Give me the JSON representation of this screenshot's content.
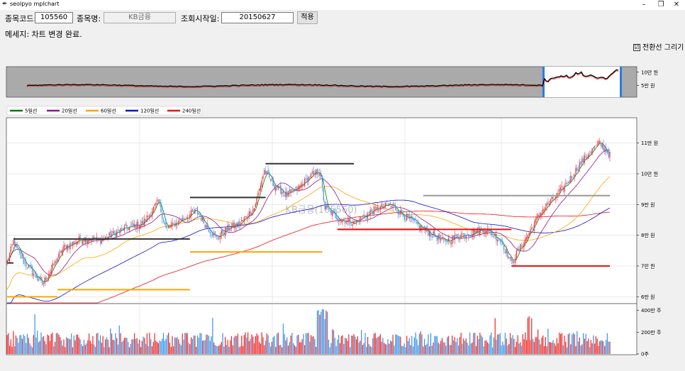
{
  "window": {
    "title": "seolpyo mplchart",
    "minimize": "–",
    "maximize": "❐",
    "close": "✕"
  },
  "toolbar": {
    "code_label": "종목코드:",
    "code_value": "105560",
    "name_label": "종목명:",
    "name_value": "KB금융",
    "start_label": "조회시작일:",
    "start_value": "20150627",
    "apply_label": "적용"
  },
  "message": "메세지: 차트 변경 완료.",
  "checkbox": {
    "label": "전환선 그리기",
    "checked": true,
    "mark": "☑"
  },
  "colors": {
    "up": "#ef2b2b",
    "down": "#3d95e8",
    "ma5": "#0a7a0a",
    "ma20": "#8b1a8b",
    "ma60": "#ffa500",
    "ma120": "#1010cc",
    "ma240": "#ee1111",
    "grid": "#dcdcdc"
  },
  "chart_data": {
    "type": "candlestick",
    "watermark": "KB금융(105560)",
    "legend": [
      {
        "name": "5일선",
        "color": "#0a7a0a"
      },
      {
        "name": "20일선",
        "color": "#8b1a8b"
      },
      {
        "name": "60일선",
        "color": "#ffa500"
      },
      {
        "name": "120일선",
        "color": "#1010cc"
      },
      {
        "name": "240일선",
        "color": "#ee1111"
      }
    ],
    "price_axis": {
      "ticks": [
        60000,
        70000,
        80000,
        90000,
        100000,
        110000
      ],
      "labels": [
        "6만 원",
        "7만 원",
        "8만 원",
        "9만 원",
        "10만 원",
        "11만 원"
      ],
      "ylim": [
        58000,
        118000
      ]
    },
    "volume_axis": {
      "ticks": [
        0,
        2000000,
        4000000
      ],
      "labels": [
        "0주",
        "200만 주",
        "400만 주"
      ],
      "ylim": [
        0,
        4500000
      ]
    },
    "overview_axis": {
      "ticks": [
        50000,
        100000
      ],
      "labels": [
        "5만 원",
        "10만 원"
      ]
    },
    "anchors": [
      [
        0,
        71000
      ],
      [
        5,
        78000
      ],
      [
        12,
        72000
      ],
      [
        20,
        68000
      ],
      [
        28,
        64000
      ],
      [
        35,
        69000
      ],
      [
        45,
        76000
      ],
      [
        60,
        79000
      ],
      [
        75,
        78500
      ],
      [
        92,
        82000
      ],
      [
        108,
        84000
      ],
      [
        120,
        91000
      ],
      [
        126,
        82000
      ],
      [
        134,
        84000
      ],
      [
        150,
        88000
      ],
      [
        158,
        83000
      ],
      [
        166,
        79000
      ],
      [
        174,
        82000
      ],
      [
        184,
        83500
      ],
      [
        196,
        89000
      ],
      [
        204,
        101000
      ],
      [
        212,
        96000
      ],
      [
        222,
        93000
      ],
      [
        230,
        95000
      ],
      [
        240,
        99000
      ],
      [
        248,
        101000
      ],
      [
        252,
        89000
      ],
      [
        262,
        85500
      ],
      [
        275,
        84000
      ],
      [
        290,
        88000
      ],
      [
        304,
        90000
      ],
      [
        316,
        86000
      ],
      [
        330,
        82000
      ],
      [
        346,
        78000
      ],
      [
        360,
        80000
      ],
      [
        380,
        82000
      ],
      [
        392,
        78000
      ],
      [
        400,
        71000
      ],
      [
        404,
        74000
      ],
      [
        412,
        79500
      ],
      [
        424,
        88000
      ],
      [
        436,
        93000
      ],
      [
        446,
        98000
      ],
      [
        454,
        103000
      ],
      [
        462,
        107000
      ],
      [
        470,
        110000
      ],
      [
        476,
        107000
      ],
      [
        478,
        106000
      ]
    ],
    "support_lines": [
      {
        "from": 0,
        "to": 5,
        "price": 71000,
        "color": "#333333"
      },
      {
        "from": 5,
        "to": 145,
        "price": 78800,
        "color": "#333333"
      },
      {
        "from": 0,
        "to": 40,
        "price": 60000,
        "color": "#ffa500"
      },
      {
        "from": 40,
        "to": 145,
        "price": 62300,
        "color": "#ffa500"
      },
      {
        "from": 145,
        "to": 250,
        "price": 74600,
        "color": "#ffa500"
      },
      {
        "from": 145,
        "to": 205,
        "price": 92300,
        "color": "#333333"
      },
      {
        "from": 205,
        "to": 275,
        "price": 103300,
        "color": "#333333"
      },
      {
        "from": 262,
        "to": 330,
        "price": 81900,
        "color": "#ee1111"
      },
      {
        "from": 330,
        "to": 400,
        "price": 92900,
        "color": "#999999"
      },
      {
        "from": 400,
        "to": 478,
        "price": 92900,
        "color": "#999999"
      },
      {
        "from": 400,
        "to": 478,
        "price": 70000,
        "color": "#ee1111"
      },
      {
        "from": 262,
        "to": 400,
        "price": 81900,
        "color": "#ee1111"
      }
    ],
    "count": 479,
    "seed": 12345
  }
}
